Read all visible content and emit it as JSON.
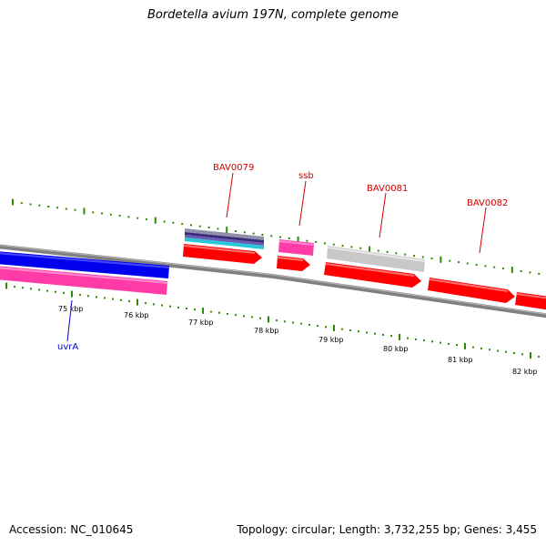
{
  "title": "Bordetella avium 197N, complete genome",
  "footer": {
    "accession": "Accession: NC_010645",
    "summary": "Topology: circular; Length: 3,732,255 bp; Genes: 3,455"
  },
  "scale_ticks": [
    "75 kbp",
    "76 kbp",
    "77 kbp",
    "78 kbp",
    "79 kbp",
    "80 kbp",
    "81 kbp",
    "82 kbp"
  ],
  "gene_labels": {
    "bav0079": "BAV0079",
    "ssb": "ssb",
    "bav0081": "BAV0081",
    "bav0082": "BAV0082",
    "uvra": "uvrA"
  },
  "colors": {
    "backbone": "#808080",
    "cds_forward": "#ff0000",
    "cds_reverse": "#0000ee",
    "gene_pink": "#ff3ba8",
    "gray_feature": "#c8c8c8",
    "tick_green": "#2e8b00",
    "label_red": "#d40000",
    "label_blue": "#0000cc"
  }
}
